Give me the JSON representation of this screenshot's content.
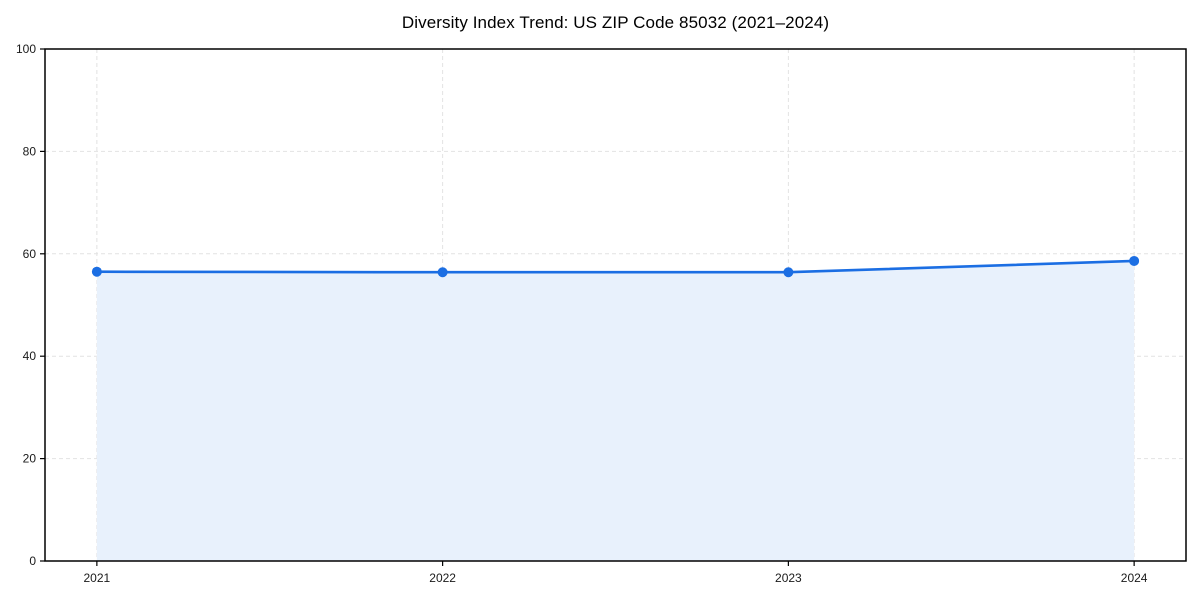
{
  "chart_data": {
    "type": "area",
    "title": "Diversity Index Trend: US ZIP Code 85032 (2021–2024)",
    "x": [
      2021,
      2022,
      2023,
      2024
    ],
    "x_labels": [
      "2021",
      "2022",
      "2023",
      "2024"
    ],
    "series": [
      {
        "name": "Diversity Index",
        "values": [
          56.5,
          56.4,
          56.4,
          58.6
        ]
      }
    ],
    "xlabel": "",
    "ylabel": "",
    "ylim": [
      0,
      100
    ],
    "yticks": [
      0,
      20,
      40,
      60,
      80,
      100
    ],
    "x_margin_fraction": 0.05,
    "grid": true,
    "grid_style": "dashed",
    "legend": "none",
    "colors": {
      "line": "#1b6ee3",
      "marker": "#1b6ee3",
      "fill": "#e8f1fc",
      "grid": "#e2e2e2",
      "axis": "#000000",
      "text": "#1a1a1a",
      "background": "#ffffff"
    }
  }
}
